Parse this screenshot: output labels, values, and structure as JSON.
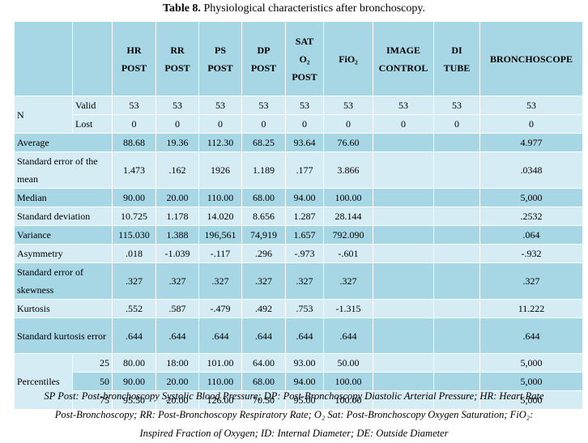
{
  "title": {
    "bold": "Table 8.",
    "rest": " Physiological characteristics after bronchoscopy."
  },
  "header": {
    "cols": [
      [
        "HR",
        "POST"
      ],
      [
        "RR",
        "POST"
      ],
      [
        "PS",
        "POST"
      ],
      [
        "DP",
        "POST"
      ],
      [
        "SAT",
        "O₂",
        "POST"
      ],
      [
        "FiO₂"
      ],
      [
        "IMAGE",
        "CONTROL"
      ],
      [
        "DI",
        "TUBE"
      ],
      [
        "BRONCHOSCOPE"
      ]
    ]
  },
  "rows": [
    {
      "label": "N",
      "sub": "Valid",
      "values": [
        "53",
        "53",
        "53",
        "53",
        "53",
        "53",
        "53",
        "53",
        "53"
      ]
    },
    {
      "label": "",
      "sub": "Lost",
      "values": [
        "0",
        "0",
        "0",
        "0",
        "0",
        "0",
        "0",
        "0",
        "0"
      ]
    },
    {
      "label": "Average",
      "values": [
        "88.68",
        "19.36",
        "112.30",
        "68.25",
        "93.64",
        "76.60",
        "",
        "",
        "4.977"
      ]
    },
    {
      "label": "Standard error of the mean",
      "values": [
        "1.473",
        ".162",
        "1926",
        "1.189",
        ".177",
        "3.866",
        "",
        "",
        ".0348"
      ]
    },
    {
      "label": "Median",
      "values": [
        "90.00",
        "20.00",
        "110.00",
        "68.00",
        "94.00",
        "100.00",
        "",
        "",
        "5,000"
      ]
    },
    {
      "label": "Standard deviation",
      "values": [
        "10.725",
        "1.178",
        "14.020",
        "8.656",
        "1.287",
        "28.144",
        "",
        "",
        ".2532"
      ]
    },
    {
      "label": "Variance",
      "values": [
        "115.030",
        "1.388",
        "196,561",
        "74,919",
        "1.657",
        "792.090",
        "",
        "",
        ".064"
      ]
    },
    {
      "label": "Asymmetry",
      "values": [
        ".018",
        "-1.039",
        "-.117",
        ".296",
        "-.973",
        "-.601",
        "",
        "",
        "-.932"
      ]
    },
    {
      "label": "Standard error of skewness",
      "values": [
        ".327",
        ".327",
        ".327",
        ".327",
        ".327",
        ".327",
        "",
        "",
        ".327"
      ]
    },
    {
      "label": "Kurtosis",
      "values": [
        ".552",
        ".587",
        "-.479",
        ".492",
        ".753",
        "-1.315",
        "",
        "",
        "11.222"
      ]
    },
    {
      "label": "Standard kurtosis error",
      "values": [
        ".644",
        ".644",
        ".644",
        ".644",
        ".644",
        ".644",
        "",
        "",
        ".644"
      ]
    },
    {
      "label": "Percentiles",
      "sub": "25",
      "values": [
        "80.00",
        "18:00",
        "101.00",
        "64.00",
        "93.00",
        "50.00",
        "",
        "",
        "5,000"
      ]
    },
    {
      "label": "",
      "sub": "50",
      "values": [
        "90.00",
        "20.00",
        "110.00",
        "68.00",
        "94.00",
        "100.00",
        "",
        "",
        "5,000"
      ]
    },
    {
      "label": "",
      "sub": "75",
      "values": [
        "95.50",
        "20.00",
        "126.00",
        "70.50",
        "95.00",
        "100.00",
        "",
        "",
        "5,000"
      ]
    }
  ],
  "footer": [
    "SP Post: Post-bronchoscopy Systolic Blood Pressure; DP: Post-Bronchoscopy Diastolic Arterial Pressure; HR: Heart Rate",
    "Post-Bronchoscopy; RR: Post-Bronchoscopy Respiratory Rate; O₂ Sat: Post-Bronchoscopy Oxygen Saturation; FiO₂:",
    "Inspired Fraction of Oxygen; ID: Internal Diameter; DE: Outside Diameter"
  ]
}
